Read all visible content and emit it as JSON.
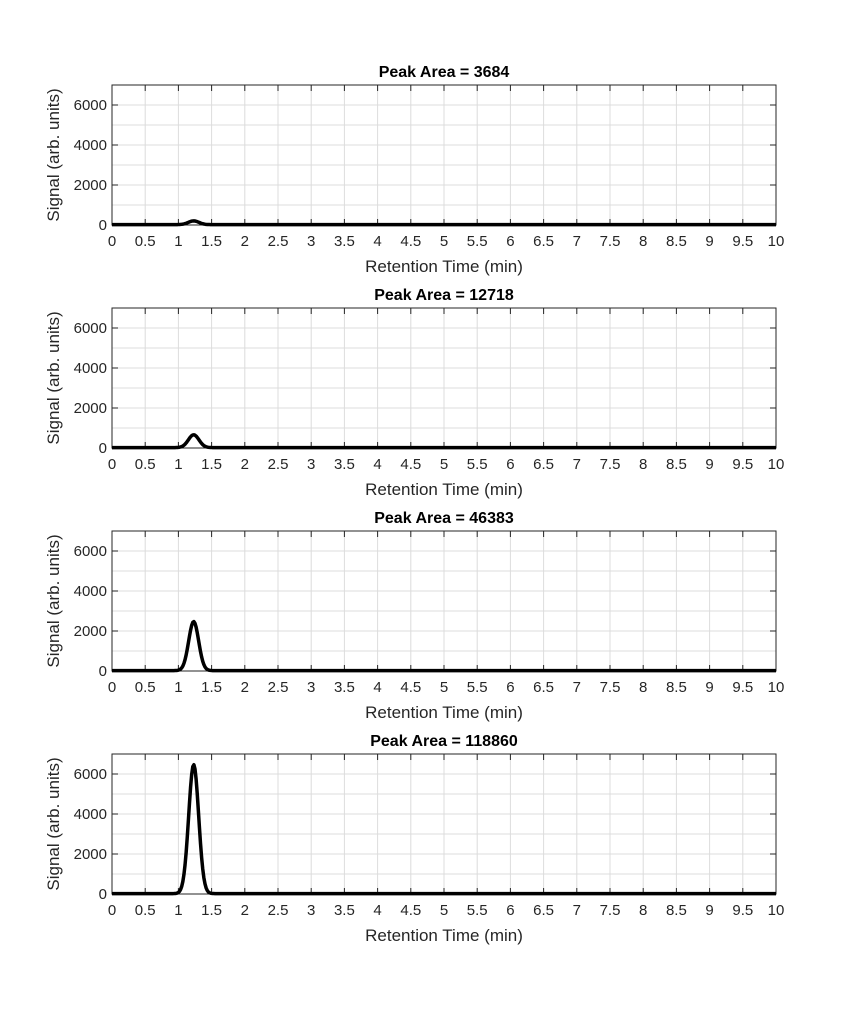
{
  "chart_data": [
    {
      "type": "line",
      "title": "Peak Area = 3684",
      "xlabel": "Retention Time (min)",
      "ylabel": "Signal (arb. units)",
      "xlim": [
        0,
        10
      ],
      "ylim": [
        0,
        7000
      ],
      "xticks": [
        "0",
        "0.5",
        "1",
        "1.5",
        "2",
        "2.5",
        "3",
        "3.5",
        "4",
        "4.5",
        "5",
        "5.5",
        "6",
        "6.5",
        "7",
        "7.5",
        "8",
        "8.5",
        "9",
        "9.5",
        "10"
      ],
      "yticks": [
        "0",
        "2000",
        "4000",
        "6000"
      ],
      "grid": true,
      "peak": {
        "center": 1.23,
        "height": 185,
        "width_sigma": 0.08
      },
      "line_color": "#000000"
    },
    {
      "type": "line",
      "title": "Peak Area = 12718",
      "xlabel": "Retention Time (min)",
      "ylabel": "Signal (arb. units)",
      "xlim": [
        0,
        10
      ],
      "ylim": [
        0,
        7000
      ],
      "xticks": [
        "0",
        "0.5",
        "1",
        "1.5",
        "2",
        "2.5",
        "3",
        "3.5",
        "4",
        "4.5",
        "5",
        "5.5",
        "6",
        "6.5",
        "7",
        "7.5",
        "8",
        "8.5",
        "9",
        "9.5",
        "10"
      ],
      "yticks": [
        "0",
        "2000",
        "4000",
        "6000"
      ],
      "grid": true,
      "peak": {
        "center": 1.23,
        "height": 640,
        "width_sigma": 0.08
      },
      "line_color": "#000000"
    },
    {
      "type": "line",
      "title": "Peak Area = 46383",
      "xlabel": "Retention Time (min)",
      "ylabel": "Signal (arb. units)",
      "xlim": [
        0,
        10
      ],
      "ylim": [
        0,
        7000
      ],
      "xticks": [
        "0",
        "0.5",
        "1",
        "1.5",
        "2",
        "2.5",
        "3",
        "3.5",
        "4",
        "4.5",
        "5",
        "5.5",
        "6",
        "6.5",
        "7",
        "7.5",
        "8",
        "8.5",
        "9",
        "9.5",
        "10"
      ],
      "yticks": [
        "0",
        "2000",
        "4000",
        "6000"
      ],
      "grid": true,
      "peak": {
        "center": 1.23,
        "height": 2450,
        "width_sigma": 0.075
      },
      "line_color": "#000000"
    },
    {
      "type": "line",
      "title": "Peak Area = 118860",
      "xlabel": "Retention Time (min)",
      "ylabel": "Signal (arb. units)",
      "xlim": [
        0,
        10
      ],
      "ylim": [
        0,
        7000
      ],
      "xticks": [
        "0",
        "0.5",
        "1",
        "1.5",
        "2",
        "2.5",
        "3",
        "3.5",
        "4",
        "4.5",
        "5",
        "5.5",
        "6",
        "6.5",
        "7",
        "7.5",
        "8",
        "8.5",
        "9",
        "9.5",
        "10"
      ],
      "yticks": [
        "0",
        "2000",
        "4000",
        "6000"
      ],
      "grid": true,
      "peak": {
        "center": 1.23,
        "height": 6450,
        "width_sigma": 0.075
      },
      "line_color": "#000000"
    }
  ]
}
